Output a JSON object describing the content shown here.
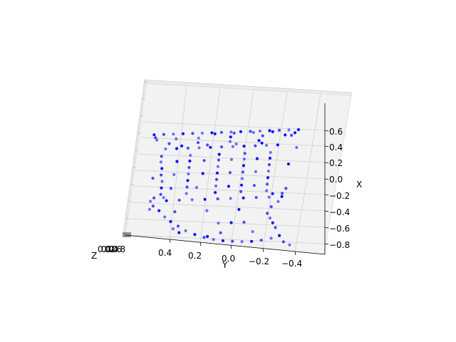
{
  "chart_data": {
    "type": "scatter",
    "projection": "3d",
    "title": "",
    "xlabel": "X",
    "ylabel": "Y",
    "zlabel": "Z",
    "x_ticks": [
      "0.6",
      "0.4",
      "0.2",
      "0.0",
      "−0.2",
      "−0.4",
      "−0.6",
      "−0.8"
    ],
    "y_ticks": [
      "0.4",
      "0.2",
      "0.0",
      "−0.2",
      "−0.4"
    ],
    "z_ticks_note": "overlapping, illegible",
    "marker_color": "#0000ff",
    "grid": true,
    "pane_color": "#f2f2f2",
    "series": [
      {
        "points": [
          [
            0.62,
            0.48,
            0.0
          ],
          [
            0.62,
            0.42,
            0.0
          ],
          [
            0.62,
            0.36,
            0.0
          ],
          [
            0.62,
            0.3,
            0.0
          ],
          [
            0.62,
            0.24,
            0.0
          ],
          [
            0.62,
            0.18,
            0.0
          ],
          [
            0.62,
            0.12,
            0.0
          ],
          [
            0.62,
            0.06,
            0.0
          ],
          [
            0.62,
            0.0,
            0.0
          ],
          [
            0.62,
            -0.06,
            0.0
          ],
          [
            0.62,
            -0.12,
            0.0
          ],
          [
            0.62,
            -0.18,
            0.0
          ],
          [
            0.62,
            -0.24,
            0.0
          ],
          [
            0.62,
            -0.3,
            0.0
          ],
          [
            0.62,
            -0.36,
            0.0
          ],
          [
            0.62,
            -0.42,
            0.0
          ],
          [
            0.58,
            0.47,
            0.02
          ],
          [
            0.55,
            0.46,
            0.02
          ],
          [
            0.58,
            -0.4,
            0.02
          ],
          [
            0.55,
            -0.38,
            0.02
          ],
          [
            0.44,
            0.4,
            0.0
          ],
          [
            0.44,
            0.33,
            0.0
          ],
          [
            0.44,
            0.26,
            0.0
          ],
          [
            0.44,
            0.19,
            0.0
          ],
          [
            0.44,
            0.12,
            0.0
          ],
          [
            0.44,
            0.05,
            0.0
          ],
          [
            0.44,
            -0.02,
            0.0
          ],
          [
            0.44,
            -0.09,
            0.0
          ],
          [
            0.44,
            -0.16,
            0.0
          ],
          [
            0.44,
            -0.23,
            0.0
          ],
          [
            0.44,
            -0.3,
            0.0
          ],
          [
            0.35,
            0.42,
            0.0
          ],
          [
            0.28,
            0.42,
            0.0
          ],
          [
            0.2,
            0.41,
            0.0
          ],
          [
            0.12,
            0.41,
            0.0
          ],
          [
            0.04,
            0.4,
            0.0
          ],
          [
            -0.04,
            0.4,
            0.0
          ],
          [
            -0.12,
            0.4,
            0.0
          ],
          [
            0.35,
            0.24,
            0.0
          ],
          [
            0.28,
            0.24,
            0.0
          ],
          [
            0.2,
            0.24,
            0.0
          ],
          [
            0.12,
            0.24,
            0.0
          ],
          [
            0.04,
            0.24,
            0.0
          ],
          [
            -0.04,
            0.24,
            0.0
          ],
          [
            -0.12,
            0.24,
            0.0
          ],
          [
            0.35,
            0.06,
            0.0
          ],
          [
            0.28,
            0.06,
            0.0
          ],
          [
            0.2,
            0.06,
            0.0
          ],
          [
            0.12,
            0.06,
            0.0
          ],
          [
            0.04,
            0.06,
            0.0
          ],
          [
            -0.04,
            0.06,
            0.0
          ],
          [
            -0.12,
            0.06,
            0.0
          ],
          [
            0.35,
            -0.1,
            0.0
          ],
          [
            0.28,
            -0.1,
            0.0
          ],
          [
            0.2,
            -0.1,
            0.0
          ],
          [
            0.12,
            -0.1,
            0.0
          ],
          [
            0.04,
            -0.1,
            0.0
          ],
          [
            -0.04,
            -0.1,
            0.0
          ],
          [
            -0.12,
            -0.1,
            0.0
          ],
          [
            0.35,
            -0.26,
            0.0
          ],
          [
            0.28,
            -0.26,
            0.0
          ],
          [
            0.2,
            -0.26,
            0.0
          ],
          [
            0.12,
            -0.26,
            0.0
          ],
          [
            0.04,
            -0.26,
            0.0
          ],
          [
            -0.04,
            -0.26,
            0.0
          ],
          [
            -0.12,
            -0.26,
            0.0
          ],
          [
            0.47,
            0.3,
            0.0
          ],
          [
            0.47,
            0.14,
            0.0
          ],
          [
            0.47,
            -0.04,
            0.0
          ],
          [
            0.47,
            -0.2,
            0.0
          ],
          [
            -0.16,
            0.44,
            0.0
          ],
          [
            -0.16,
            0.38,
            0.0
          ],
          [
            -0.16,
            -0.3,
            0.0
          ],
          [
            -0.16,
            -0.36,
            0.0
          ],
          [
            -0.2,
            0.46,
            0.0
          ],
          [
            -0.2,
            0.36,
            0.0
          ],
          [
            -0.2,
            0.28,
            0.0
          ],
          [
            -0.2,
            0.2,
            0.0
          ],
          [
            -0.2,
            0.12,
            0.0
          ],
          [
            -0.2,
            0.04,
            0.0
          ],
          [
            -0.2,
            -0.04,
            0.0
          ],
          [
            -0.2,
            -0.12,
            0.0
          ],
          [
            -0.2,
            -0.2,
            0.0
          ],
          [
            -0.2,
            -0.28,
            0.0
          ],
          [
            -0.2,
            -0.36,
            0.0
          ],
          [
            -0.26,
            0.44,
            0.0
          ],
          [
            -0.26,
            -0.34,
            0.0
          ],
          [
            -0.32,
            0.4,
            0.0
          ],
          [
            -0.32,
            -0.3,
            0.0
          ],
          [
            -0.4,
            0.36,
            0.0
          ],
          [
            -0.46,
            0.32,
            0.0
          ],
          [
            -0.52,
            0.27,
            0.0
          ],
          [
            -0.58,
            0.22,
            0.0
          ],
          [
            -0.63,
            0.16,
            0.0
          ],
          [
            -0.67,
            0.1,
            0.0
          ],
          [
            -0.7,
            0.04,
            0.0
          ],
          [
            -0.72,
            -0.02,
            0.0
          ],
          [
            -0.73,
            -0.08,
            0.0
          ],
          [
            -0.74,
            -0.14,
            0.0
          ],
          [
            -0.74,
            -0.2,
            0.0
          ],
          [
            -0.73,
            -0.26,
            0.0
          ],
          [
            -0.71,
            -0.32,
            0.0
          ],
          [
            -0.68,
            -0.37,
            0.0
          ],
          [
            -0.4,
            -0.28,
            0.0
          ],
          [
            -0.46,
            -0.3,
            0.0
          ],
          [
            -0.52,
            -0.32,
            0.0
          ],
          [
            -0.58,
            -0.34,
            0.0
          ],
          [
            -0.5,
            0.02,
            0.0
          ],
          [
            -0.5,
            -0.06,
            0.0
          ],
          [
            -0.5,
            -0.14,
            0.0
          ],
          [
            -0.55,
            0.3,
            0.0
          ],
          [
            -0.6,
            0.26,
            0.0
          ],
          [
            -0.76,
            -0.4,
            0.0
          ],
          [
            -0.8,
            -0.44,
            0.0
          ],
          [
            0.6,
            0.1,
            0.03
          ],
          [
            0.6,
            -0.02,
            0.03
          ],
          [
            0.6,
            -0.14,
            0.03
          ],
          [
            0.6,
            -0.26,
            0.03
          ],
          [
            0.5,
            0.2,
            0.02
          ],
          [
            0.5,
            0.0,
            0.02
          ],
          [
            0.5,
            -0.18,
            0.02
          ],
          [
            0.5,
            0.38,
            0.02
          ],
          [
            0.56,
            0.2,
            0.0
          ],
          [
            0.56,
            0.0,
            0.0
          ],
          [
            0.56,
            -0.2,
            0.0
          ],
          [
            0.56,
            0.34,
            0.0
          ],
          [
            0.56,
            -0.34,
            0.0
          ],
          [
            -0.05,
            0.34,
            0.0
          ],
          [
            -0.05,
            0.18,
            0.0
          ],
          [
            -0.05,
            -0.02,
            0.0
          ],
          [
            -0.05,
            -0.18,
            0.0
          ],
          [
            0.12,
            0.33,
            0.0
          ],
          [
            0.12,
            0.15,
            0.0
          ],
          [
            0.12,
            -0.02,
            0.0
          ],
          [
            0.12,
            -0.18,
            0.0
          ],
          [
            0.28,
            0.32,
            0.0
          ],
          [
            0.28,
            0.15,
            0.0
          ],
          [
            0.28,
            -0.02,
            0.0
          ],
          [
            0.28,
            -0.18,
            0.0
          ],
          [
            -0.34,
            0.3,
            0.0
          ],
          [
            -0.34,
            0.1,
            0.0
          ],
          [
            -0.34,
            -0.1,
            0.0
          ],
          [
            -0.62,
            0.0,
            0.0
          ],
          [
            -0.62,
            -0.2,
            0.0
          ],
          [
            -0.66,
            0.08,
            0.0
          ],
          [
            0.08,
            0.46,
            0.02
          ],
          [
            -0.3,
            0.46,
            0.0
          ],
          [
            0.2,
            -0.38,
            0.0
          ],
          [
            -0.1,
            -0.38,
            0.0
          ],
          [
            0.4,
            -0.42,
            0.0
          ]
        ]
      }
    ]
  }
}
